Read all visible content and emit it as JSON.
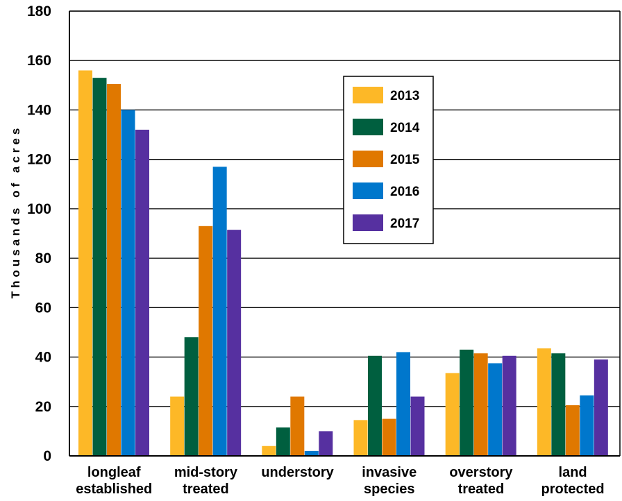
{
  "chart_data": {
    "type": "bar",
    "title": "",
    "xlabel": "",
    "ylabel": "Thousands of acres",
    "ylim": [
      0,
      180
    ],
    "yticks": [
      0,
      20,
      40,
      60,
      80,
      100,
      120,
      140,
      160,
      180
    ],
    "grid": true,
    "legend_position": "upper-middle",
    "categories": [
      [
        "longleaf",
        "established"
      ],
      [
        "mid-story",
        "treated"
      ],
      [
        "understory"
      ],
      [
        "invasive",
        "species"
      ],
      [
        "overstory",
        "treated"
      ],
      [
        "land",
        "protected"
      ]
    ],
    "series": [
      {
        "name": "2013",
        "color": "#fdb827",
        "values": [
          156,
          24,
          4,
          14.5,
          33.5,
          43.5
        ]
      },
      {
        "name": "2014",
        "color": "#005f3f",
        "values": [
          153,
          48,
          11.5,
          40.5,
          43,
          41.5
        ]
      },
      {
        "name": "2015",
        "color": "#e07800",
        "values": [
          150.5,
          93,
          24,
          15,
          41.5,
          20.5
        ]
      },
      {
        "name": "2016",
        "color": "#0077cc",
        "values": [
          140,
          117,
          2,
          42,
          37.5,
          24.5
        ]
      },
      {
        "name": "2017",
        "color": "#5630a0",
        "values": [
          132,
          91.5,
          10,
          24,
          40.5,
          39
        ]
      }
    ]
  }
}
